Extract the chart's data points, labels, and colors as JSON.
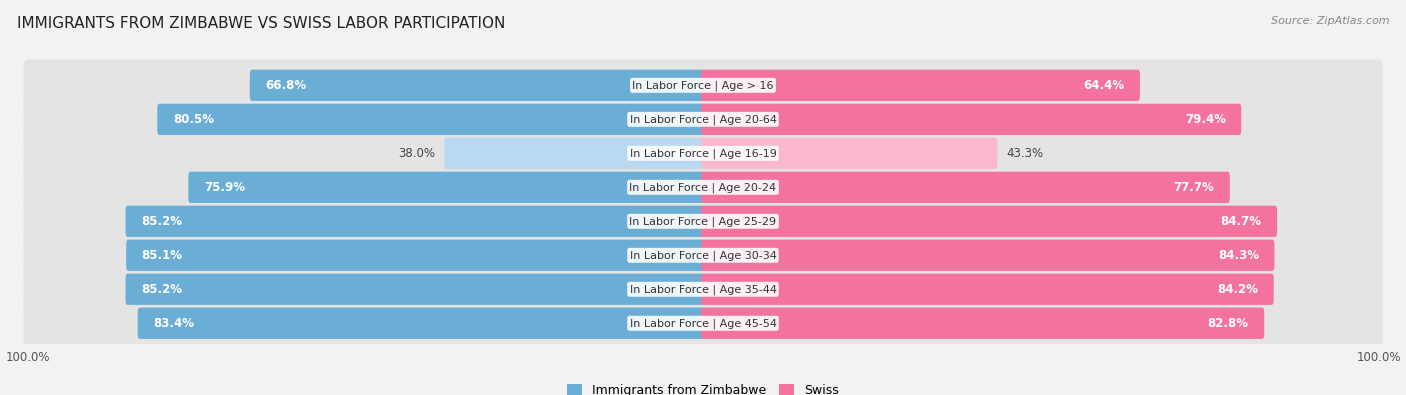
{
  "title": "IMMIGRANTS FROM ZIMBABWE VS SWISS LABOR PARTICIPATION",
  "source": "Source: ZipAtlas.com",
  "categories": [
    "In Labor Force | Age > 16",
    "In Labor Force | Age 20-64",
    "In Labor Force | Age 16-19",
    "In Labor Force | Age 20-24",
    "In Labor Force | Age 25-29",
    "In Labor Force | Age 30-34",
    "In Labor Force | Age 35-44",
    "In Labor Force | Age 45-54"
  ],
  "zimbabwe_values": [
    66.8,
    80.5,
    38.0,
    75.9,
    85.2,
    85.1,
    85.2,
    83.4
  ],
  "swiss_values": [
    64.4,
    79.4,
    43.3,
    77.7,
    84.7,
    84.3,
    84.2,
    82.8
  ],
  "zimbabwe_color": "#6aaed6",
  "swiss_color": "#f472a0",
  "zimbabwe_light_color": "#b8d9ef",
  "swiss_light_color": "#f9b8ce",
  "background_color": "#f2f2f2",
  "row_bg_color": "#e8e8e8",
  "title_fontsize": 11,
  "source_fontsize": 8,
  "legend_fontsize": 9,
  "value_fontsize": 8.5,
  "cat_fontsize": 8,
  "threshold": 50
}
